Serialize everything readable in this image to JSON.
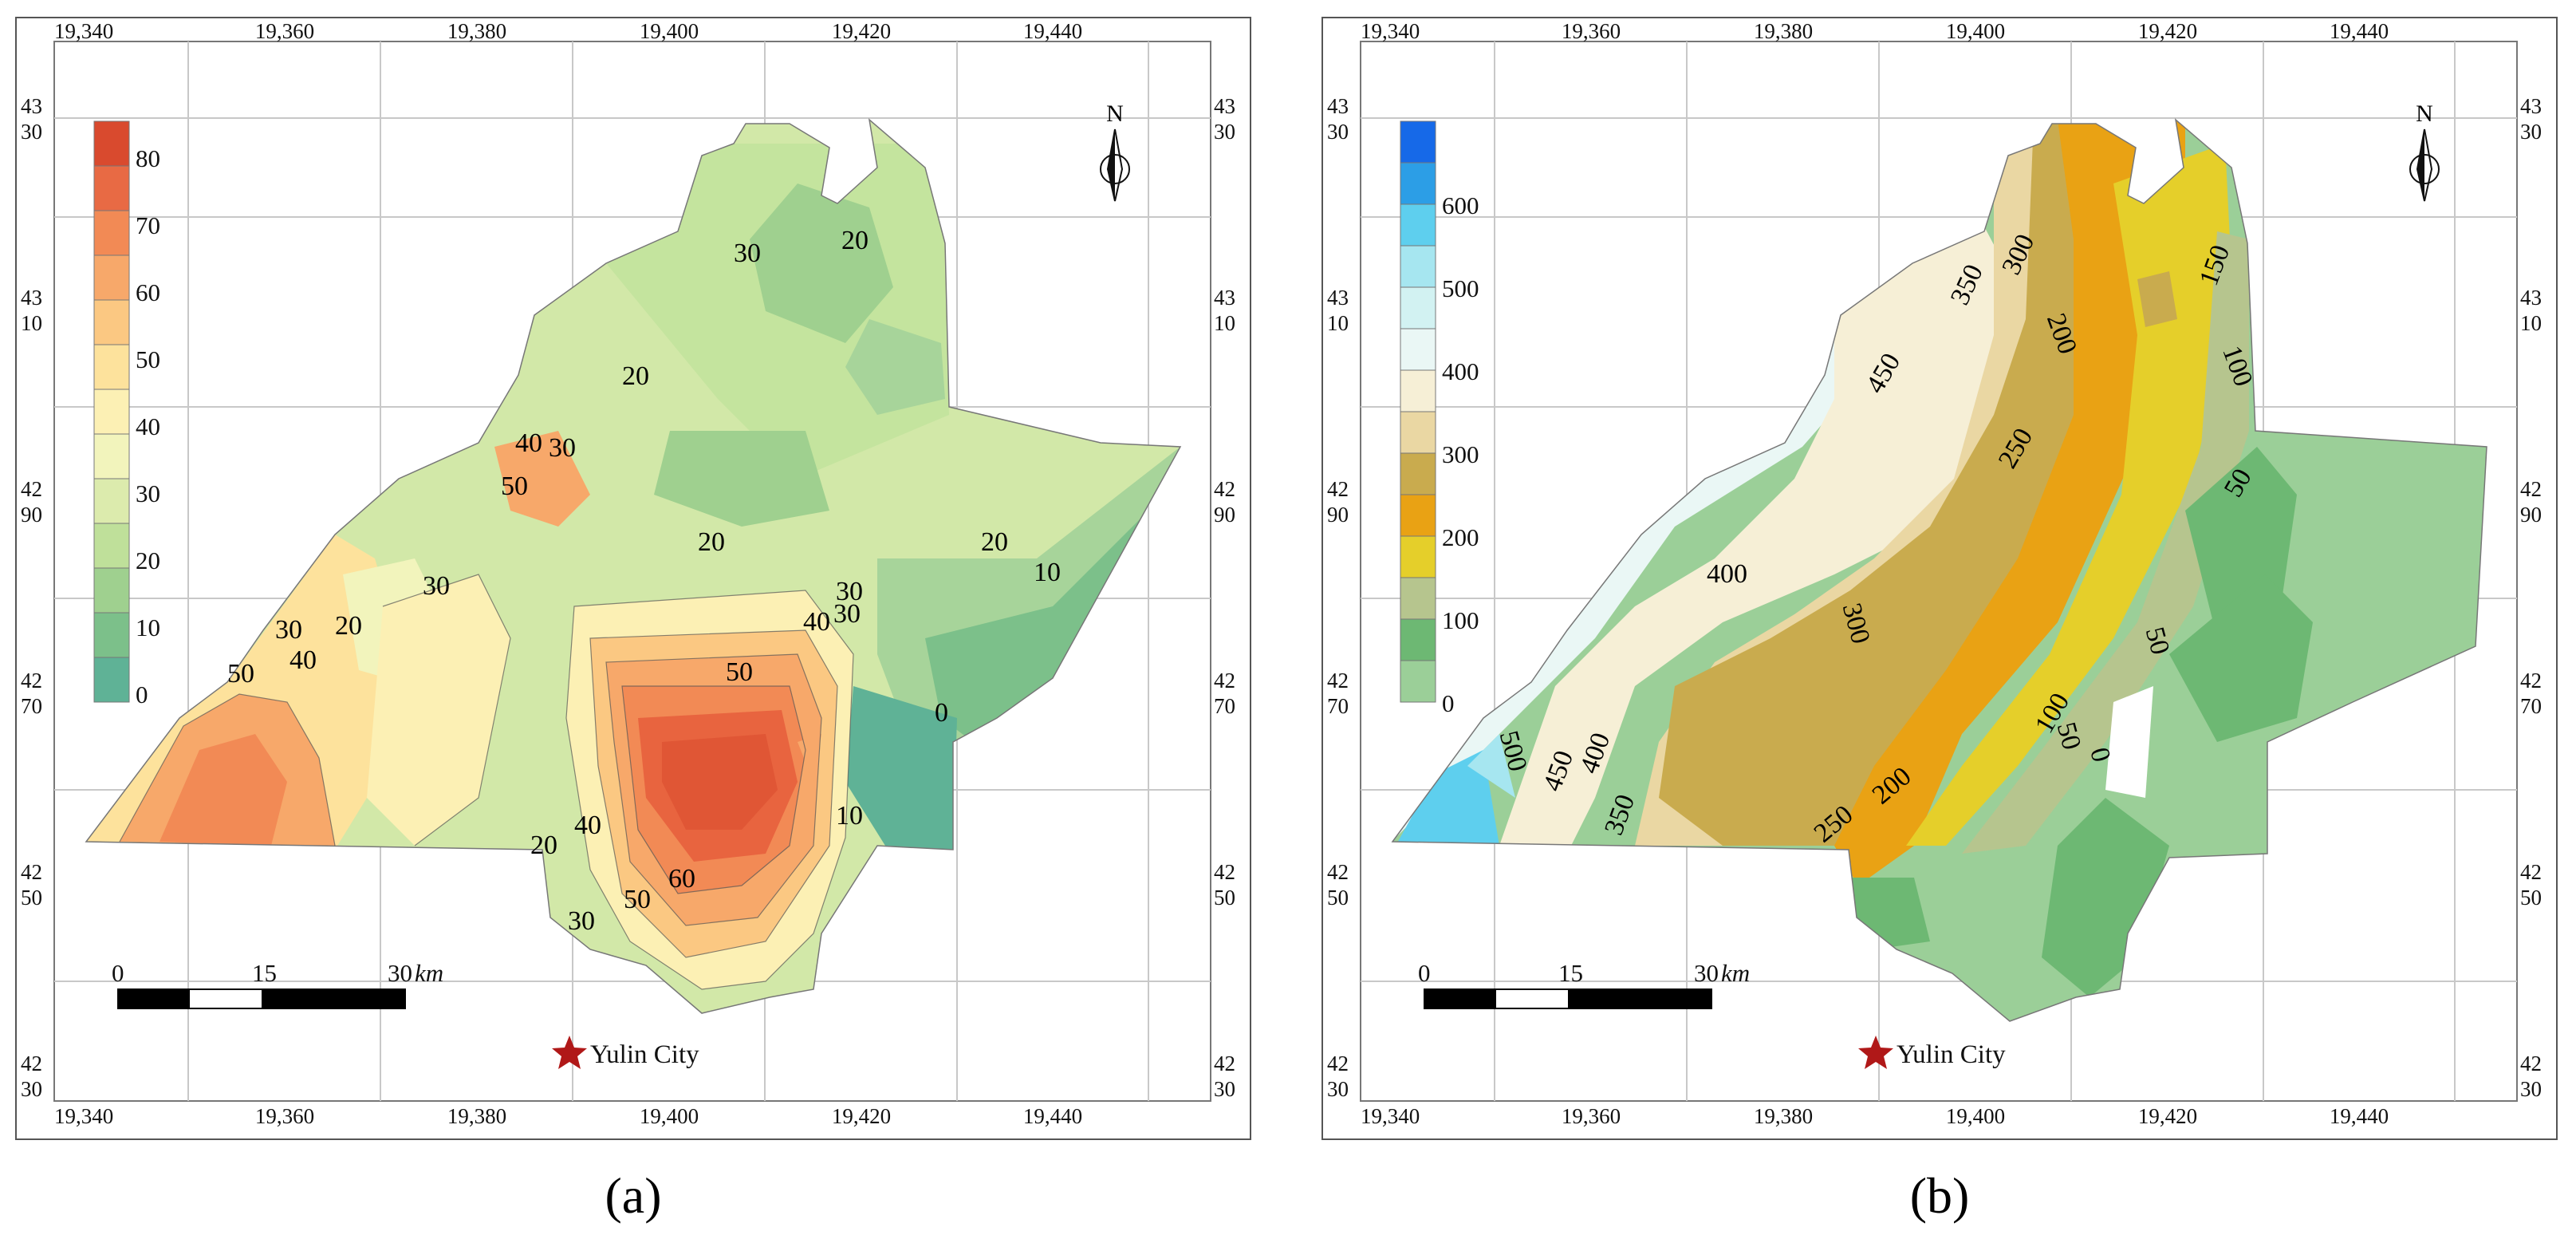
{
  "panels": [
    {
      "id": "a",
      "caption": "(a)",
      "x_ticks": [
        "19,340",
        "19,360",
        "19,380",
        "19,400",
        "19,420",
        "19,440"
      ],
      "y_ticks": [
        [
          "43",
          "30"
        ],
        [
          "43",
          "10"
        ],
        [
          "42",
          "90"
        ],
        [
          "42",
          "70"
        ],
        [
          "42",
          "50"
        ],
        [
          "42",
          "30"
        ]
      ],
      "legend_labels": [
        "80",
        "70",
        "60",
        "50",
        "40",
        "30",
        "20",
        "10",
        "0"
      ],
      "legend_colors": [
        "#d94a2e",
        "#e86a44",
        "#f28a55",
        "#f7a86a",
        "#fbc882",
        "#fde29c",
        "#fcf0b4",
        "#f2f4bc",
        "#dcebad",
        "#bfe09a",
        "#9fd08f",
        "#7cc08a",
        "#5fb296"
      ],
      "contour_labels": [
        "30",
        "20",
        "20",
        "40",
        "30",
        "50",
        "30",
        "20",
        "30",
        "40",
        "20",
        "50",
        "20",
        "30",
        "10",
        "30",
        "40",
        "50",
        "0",
        "10",
        "20",
        "40",
        "60",
        "50",
        "30"
      ],
      "scale_bar": {
        "labels": [
          "0",
          "15",
          "30"
        ],
        "unit": "km"
      },
      "north": "N",
      "city": "Yulin City"
    },
    {
      "id": "b",
      "caption": "(b)",
      "x_ticks": [
        "19,340",
        "19,360",
        "19,380",
        "19,400",
        "19,420",
        "19,440"
      ],
      "y_ticks": [
        [
          "43",
          "30"
        ],
        [
          "43",
          "10"
        ],
        [
          "42",
          "90"
        ],
        [
          "42",
          "70"
        ],
        [
          "42",
          "50"
        ],
        [
          "42",
          "30"
        ]
      ],
      "legend_labels": [
        "600",
        "500",
        "400",
        "300",
        "200",
        "100",
        "0"
      ],
      "legend_colors": [
        "#1669e8",
        "#2c9ee6",
        "#5ecfee",
        "#a6e6f0",
        "#d2f2f2",
        "#eaf7f5",
        "#f6efd6",
        "#ead7a3",
        "#c9ab4e",
        "#e9a214",
        "#e5cf2a",
        "#b6c58e",
        "#6db873",
        "#9bcf98"
      ],
      "contour_labels": [
        "350",
        "300",
        "200",
        "150",
        "100",
        "450",
        "250",
        "50",
        "400",
        "300",
        "50",
        "100",
        "50",
        "0",
        "500",
        "450",
        "400",
        "350",
        "250",
        "200"
      ],
      "scale_bar": {
        "labels": [
          "0",
          "15",
          "30"
        ],
        "unit": "km"
      },
      "north": "N",
      "city": "Yulin City"
    }
  ],
  "colors": {
    "frame": "#555555",
    "grid": "#c8c8c8",
    "city_star": "#b01818",
    "a_base": "#d2e8a8",
    "a_north": "#c4e49e",
    "a_east": "#a7d49a",
    "a_south_orange": "#f5a66b",
    "a_core": "#e8643f",
    "b_base": "#9bcf98",
    "b_west": "#f6efd6"
  }
}
